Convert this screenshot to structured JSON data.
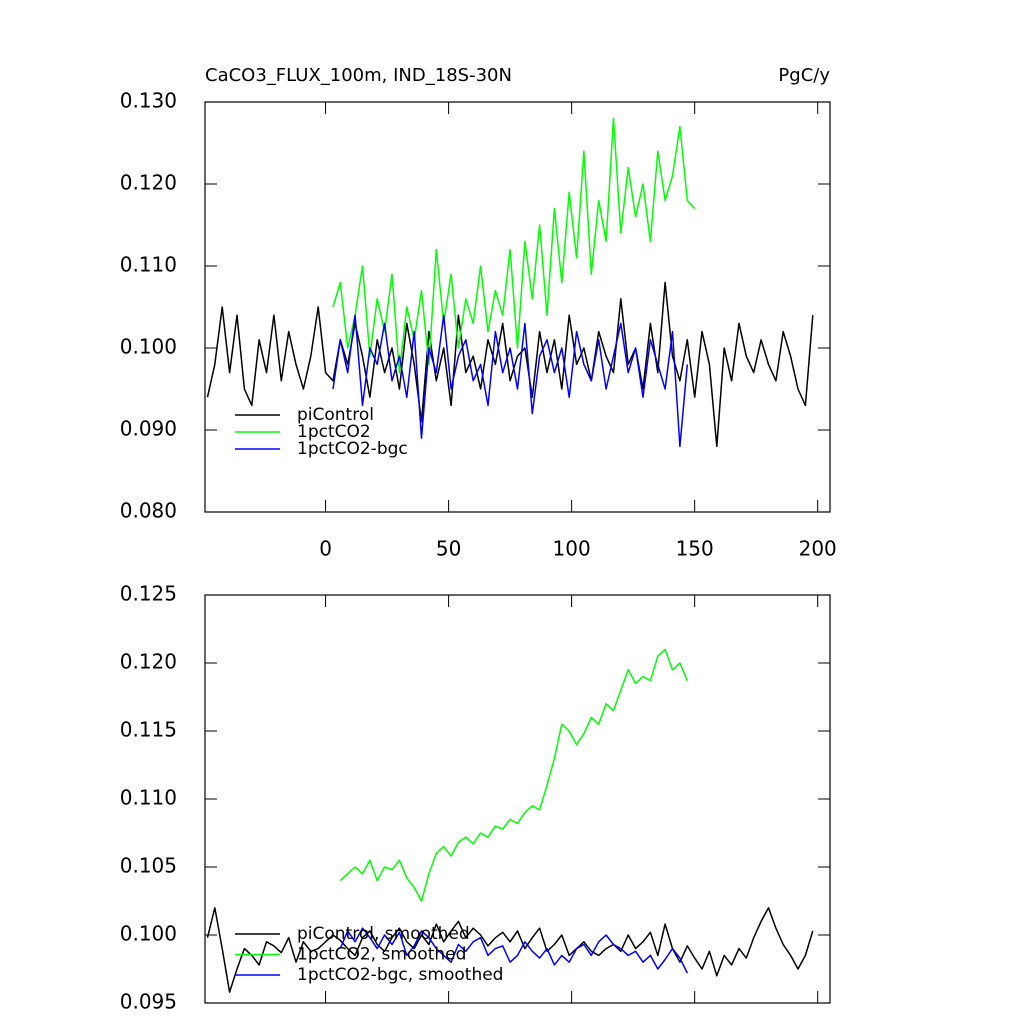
{
  "chart_data": [
    {
      "type": "line",
      "title": "CaCO3_FLUX_100m, IND_18S-30N",
      "units": "PgC/y",
      "x": [
        -48,
        -45,
        -42,
        -39,
        -36,
        -33,
        -30,
        -27,
        -24,
        -21,
        -18,
        -15,
        -12,
        -9,
        -6,
        -3,
        0,
        3,
        6,
        9,
        12,
        15,
        18,
        21,
        24,
        27,
        30,
        33,
        36,
        39,
        42,
        45,
        48,
        51,
        54,
        57,
        60,
        63,
        66,
        69,
        72,
        75,
        78,
        81,
        84,
        87,
        90,
        93,
        96,
        99,
        102,
        105,
        108,
        111,
        114,
        117,
        120,
        123,
        126,
        129,
        132,
        135,
        138,
        141,
        144,
        147,
        150,
        153,
        156,
        159,
        162,
        165,
        168,
        171,
        174,
        177,
        180,
        183,
        186,
        189,
        192,
        195,
        198
      ],
      "series": [
        {
          "name": "piControl",
          "color": "#000000",
          "values": [
            0.094,
            0.098,
            0.105,
            0.097,
            0.104,
            0.095,
            0.093,
            0.101,
            0.097,
            0.104,
            0.096,
            0.102,
            0.098,
            0.095,
            0.099,
            0.105,
            0.097,
            0.096,
            0.101,
            0.098,
            0.103,
            0.099,
            0.094,
            0.101,
            0.097,
            0.1,
            0.095,
            0.103,
            0.098,
            0.091,
            0.102,
            0.096,
            0.1,
            0.093,
            0.104,
            0.097,
            0.099,
            0.095,
            0.101,
            0.098,
            0.103,
            0.096,
            0.099,
            0.1,
            0.094,
            0.102,
            0.097,
            0.101,
            0.095,
            0.104,
            0.098,
            0.1,
            0.096,
            0.102,
            0.099,
            0.097,
            0.106,
            0.098,
            0.1,
            0.095,
            0.103,
            0.097,
            0.108,
            0.099,
            0.096,
            0.101,
            0.094,
            0.102,
            0.098,
            0.088,
            0.1,
            0.096,
            0.103,
            0.099,
            0.097,
            0.101,
            0.098,
            0.096,
            0.102,
            0.099,
            0.095,
            0.093,
            0.104
          ]
        },
        {
          "name": "1pctCO2",
          "color": "#00ff00",
          "values": [
            null,
            null,
            null,
            null,
            null,
            null,
            null,
            null,
            null,
            null,
            null,
            null,
            null,
            null,
            null,
            null,
            null,
            0.105,
            0.108,
            0.1,
            0.104,
            0.11,
            0.099,
            0.106,
            0.102,
            0.109,
            0.097,
            0.105,
            0.101,
            0.107,
            0.098,
            0.112,
            0.103,
            0.109,
            0.1,
            0.106,
            0.103,
            0.11,
            0.102,
            0.107,
            0.104,
            0.112,
            0.1,
            0.113,
            0.106,
            0.115,
            0.104,
            0.117,
            0.108,
            0.119,
            0.111,
            0.124,
            0.109,
            0.118,
            0.113,
            0.128,
            0.114,
            0.122,
            0.116,
            0.12,
            0.113,
            0.124,
            0.118,
            0.121,
            0.127,
            0.118,
            0.117,
            null,
            null,
            null,
            null,
            null,
            null,
            null,
            null,
            null,
            null,
            null,
            null,
            null,
            null,
            null,
            null
          ]
        },
        {
          "name": "1pctCO2-bgc",
          "color": "#0000ff",
          "values": [
            null,
            null,
            null,
            null,
            null,
            null,
            null,
            null,
            null,
            null,
            null,
            null,
            null,
            null,
            null,
            null,
            null,
            0.095,
            0.101,
            0.097,
            0.104,
            0.093,
            0.1,
            0.098,
            0.103,
            0.096,
            0.099,
            0.094,
            0.102,
            0.089,
            0.1,
            0.097,
            0.104,
            0.095,
            0.099,
            0.101,
            0.096,
            0.098,
            0.093,
            0.102,
            0.097,
            0.1,
            0.095,
            0.103,
            0.092,
            0.099,
            0.101,
            0.097,
            0.1,
            0.094,
            0.102,
            0.098,
            0.096,
            0.101,
            0.095,
            0.099,
            0.103,
            0.097,
            0.1,
            0.094,
            0.101,
            0.098,
            0.095,
            0.102,
            0.088,
            0.098,
            null,
            null,
            null,
            null,
            null,
            null,
            null,
            null,
            null,
            null,
            null,
            null,
            null,
            null,
            null,
            null,
            null
          ]
        }
      ],
      "xlim": [
        -49,
        205
      ],
      "xticks": [
        0,
        50,
        100,
        150,
        200
      ],
      "ylim": [
        0.08,
        0.13
      ],
      "yticks": [
        {
          "value": 0.08,
          "label": "0.080"
        },
        {
          "value": 0.09,
          "label": "0.090"
        },
        {
          "value": 0.1,
          "label": "0.100"
        },
        {
          "value": 0.11,
          "label": "0.110"
        },
        {
          "value": 0.12,
          "label": "0.120"
        },
        {
          "value": 0.13,
          "label": "0.130"
        }
      ],
      "legend": "lower left"
    },
    {
      "type": "line",
      "x": [
        -48,
        -45,
        -42,
        -39,
        -36,
        -33,
        -30,
        -27,
        -24,
        -21,
        -18,
        -15,
        -12,
        -9,
        -6,
        -3,
        0,
        3,
        6,
        9,
        12,
        15,
        18,
        21,
        24,
        27,
        30,
        33,
        36,
        39,
        42,
        45,
        48,
        51,
        54,
        57,
        60,
        63,
        66,
        69,
        72,
        75,
        78,
        81,
        84,
        87,
        90,
        93,
        96,
        99,
        102,
        105,
        108,
        111,
        114,
        117,
        120,
        123,
        126,
        129,
        132,
        135,
        138,
        141,
        144,
        147,
        150,
        153,
        156,
        159,
        162,
        165,
        168,
        171,
        174,
        177,
        180,
        183,
        186,
        189,
        192,
        195,
        198
      ],
      "series": [
        {
          "name": "piControl, smoothed",
          "color": "#000000",
          "values": [
            0.0998,
            0.102,
            0.099,
            0.0958,
            0.0975,
            0.099,
            0.0985,
            0.0978,
            0.0995,
            0.0992,
            0.0987,
            0.0998,
            0.098,
            0.0995,
            0.0988,
            0.099,
            0.0995,
            0.1,
            0.0996,
            0.099,
            0.0985,
            0.0998,
            0.1003,
            0.0993,
            0.0988,
            0.0998,
            0.1005,
            0.0995,
            0.099,
            0.1,
            0.0993,
            0.1008,
            0.0995,
            0.1003,
            0.101,
            0.0998,
            0.1005,
            0.1,
            0.0992,
            0.0998,
            0.1002,
            0.0995,
            0.1003,
            0.099,
            0.0998,
            0.1005,
            0.0988,
            0.0993,
            0.1,
            0.0985,
            0.099,
            0.0995,
            0.0988,
            0.0985,
            0.099,
            0.0993,
            0.0988,
            0.1,
            0.099,
            0.0995,
            0.1002,
            0.0985,
            0.1008,
            0.099,
            0.098,
            0.0992,
            0.0983,
            0.0975,
            0.0988,
            0.097,
            0.0985,
            0.0978,
            0.099,
            0.0983,
            0.0998,
            0.101,
            0.102,
            0.1005,
            0.0993,
            0.0985,
            0.0975,
            0.0985,
            0.1003
          ]
        },
        {
          "name": "1pctCO2, smoothed",
          "color": "#00ff00",
          "values": [
            null,
            null,
            null,
            null,
            null,
            null,
            null,
            null,
            null,
            null,
            null,
            null,
            null,
            null,
            null,
            null,
            null,
            null,
            0.104,
            0.1045,
            0.105,
            0.1045,
            0.1055,
            0.104,
            0.105,
            0.1048,
            0.1055,
            0.1042,
            0.1035,
            0.1025,
            0.1045,
            0.106,
            0.1065,
            0.1058,
            0.1068,
            0.1072,
            0.1067,
            0.1075,
            0.1072,
            0.108,
            0.1078,
            0.1085,
            0.1082,
            0.109,
            0.1095,
            0.1092,
            0.111,
            0.113,
            0.1155,
            0.115,
            0.114,
            0.1148,
            0.116,
            0.1155,
            0.117,
            0.1165,
            0.118,
            0.1195,
            0.1185,
            0.119,
            0.1187,
            0.1205,
            0.121,
            0.1195,
            0.12,
            0.1187,
            null,
            null,
            null,
            null,
            null,
            null,
            null,
            null,
            null,
            null,
            null,
            null,
            null,
            null,
            null,
            null,
            null
          ]
        },
        {
          "name": "1pctCO2-bgc, smoothed",
          "color": "#0000ff",
          "values": [
            null,
            null,
            null,
            null,
            null,
            null,
            null,
            null,
            null,
            null,
            null,
            null,
            null,
            null,
            null,
            null,
            null,
            null,
            0.099,
            0.1003,
            0.0995,
            0.1005,
            0.0998,
            0.099,
            0.1,
            0.0993,
            0.1002,
            0.0985,
            0.0992,
            0.1003,
            0.0998,
            0.099,
            0.0985,
            0.098,
            0.0993,
            0.0988,
            0.0995,
            0.0998,
            0.0985,
            0.099,
            0.0992,
            0.098,
            0.0985,
            0.0995,
            0.0988,
            0.0983,
            0.099,
            0.0978,
            0.0985,
            0.098,
            0.099,
            0.0993,
            0.0985,
            0.0995,
            0.1,
            0.0993,
            0.099,
            0.0985,
            0.0988,
            0.098,
            0.0985,
            0.0975,
            0.0982,
            0.099,
            0.0983,
            0.0972,
            null,
            null,
            null,
            null,
            null,
            null,
            null,
            null,
            null,
            null,
            null,
            null,
            null,
            null,
            null,
            null,
            null
          ]
        }
      ],
      "xlim": [
        -49,
        205
      ],
      "xticks": [
        0,
        50,
        100,
        150,
        200
      ],
      "ylim": [
        0.095,
        0.125
      ],
      "yticks": [
        {
          "value": 0.095,
          "label": "0.095"
        },
        {
          "value": 0.1,
          "label": "0.100"
        },
        {
          "value": 0.105,
          "label": "0.105"
        },
        {
          "value": 0.11,
          "label": "0.110"
        },
        {
          "value": 0.115,
          "label": "0.115"
        },
        {
          "value": 0.12,
          "label": "0.120"
        },
        {
          "value": 0.125,
          "label": "0.125"
        }
      ],
      "legend": "lower left"
    }
  ]
}
